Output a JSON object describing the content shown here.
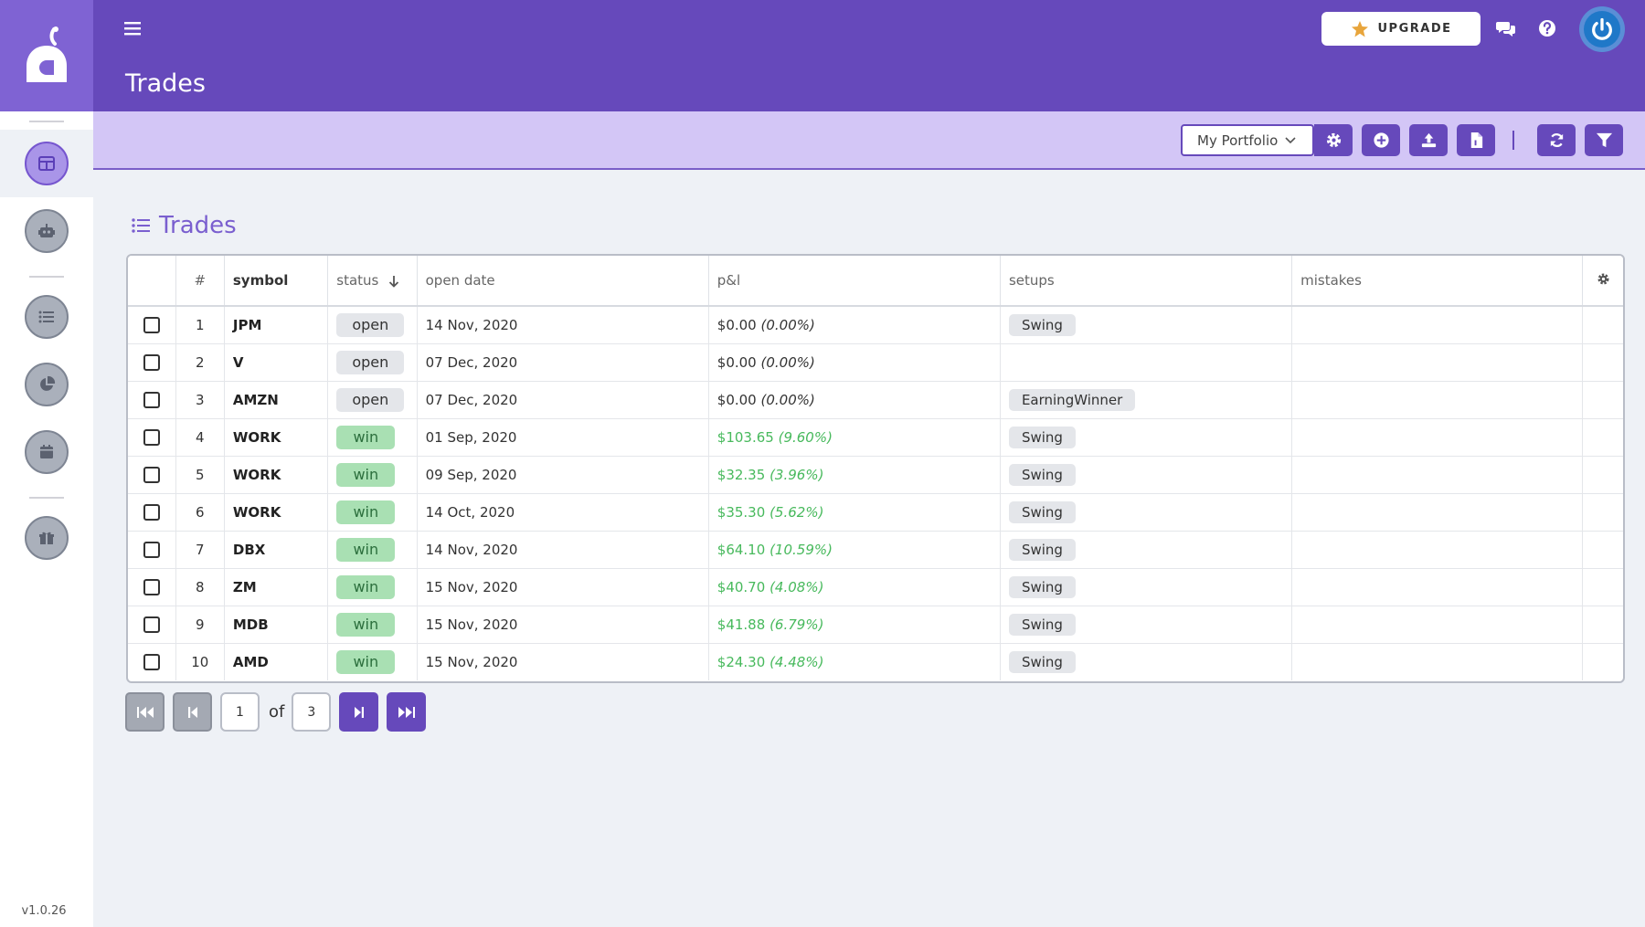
{
  "sidebar": {
    "version": "v1.0.26",
    "items": [
      {
        "icon": "dashboard-icon",
        "active": true
      },
      {
        "icon": "robot-icon",
        "active": false
      },
      {
        "icon": "list-icon",
        "active": false
      },
      {
        "icon": "pie-chart-icon",
        "active": false
      },
      {
        "icon": "calendar-icon",
        "active": false
      },
      {
        "icon": "gift-icon",
        "active": false
      }
    ]
  },
  "header": {
    "title": "Trades",
    "upgrade_label": "UPGRADE"
  },
  "toolbar": {
    "portfolio": "My Portfolio"
  },
  "section": {
    "title": "Trades"
  },
  "table": {
    "columns": {
      "num": "#",
      "symbol": "symbol",
      "status": "status",
      "open_date": "open date",
      "pnl": "p&l",
      "setups": "setups",
      "mistakes": "mistakes"
    },
    "rows": [
      {
        "num": "1",
        "symbol": "JPM",
        "status": "open",
        "date": "14 Nov, 2020",
        "pnl": "$0.00",
        "pct": "(0.00%)",
        "setup": "Swing"
      },
      {
        "num": "2",
        "symbol": "V",
        "status": "open",
        "date": "07 Dec, 2020",
        "pnl": "$0.00",
        "pct": "(0.00%)",
        "setup": ""
      },
      {
        "num": "3",
        "symbol": "AMZN",
        "status": "open",
        "date": "07 Dec, 2020",
        "pnl": "$0.00",
        "pct": "(0.00%)",
        "setup": "EarningWinner"
      },
      {
        "num": "4",
        "symbol": "WORK",
        "status": "win",
        "date": "01 Sep, 2020",
        "pnl": "$103.65",
        "pct": "(9.60%)",
        "setup": "Swing"
      },
      {
        "num": "5",
        "symbol": "WORK",
        "status": "win",
        "date": "09 Sep, 2020",
        "pnl": "$32.35",
        "pct": "(3.96%)",
        "setup": "Swing"
      },
      {
        "num": "6",
        "symbol": "WORK",
        "status": "win",
        "date": "14 Oct, 2020",
        "pnl": "$35.30",
        "pct": "(5.62%)",
        "setup": "Swing"
      },
      {
        "num": "7",
        "symbol": "DBX",
        "status": "win",
        "date": "14 Nov, 2020",
        "pnl": "$64.10",
        "pct": "(10.59%)",
        "setup": "Swing"
      },
      {
        "num": "8",
        "symbol": "ZM",
        "status": "win",
        "date": "15 Nov, 2020",
        "pnl": "$40.70",
        "pct": "(4.08%)",
        "setup": "Swing"
      },
      {
        "num": "9",
        "symbol": "MDB",
        "status": "win",
        "date": "15 Nov, 2020",
        "pnl": "$41.88",
        "pct": "(6.79%)",
        "setup": "Swing"
      },
      {
        "num": "10",
        "symbol": "AMD",
        "status": "win",
        "date": "15 Nov, 2020",
        "pnl": "$24.30",
        "pct": "(4.48%)",
        "setup": "Swing"
      }
    ]
  },
  "pagination": {
    "current": "1",
    "of_label": "of",
    "total": "3"
  },
  "colors": {
    "brand": "#6649bb",
    "win": "#47b95c"
  }
}
